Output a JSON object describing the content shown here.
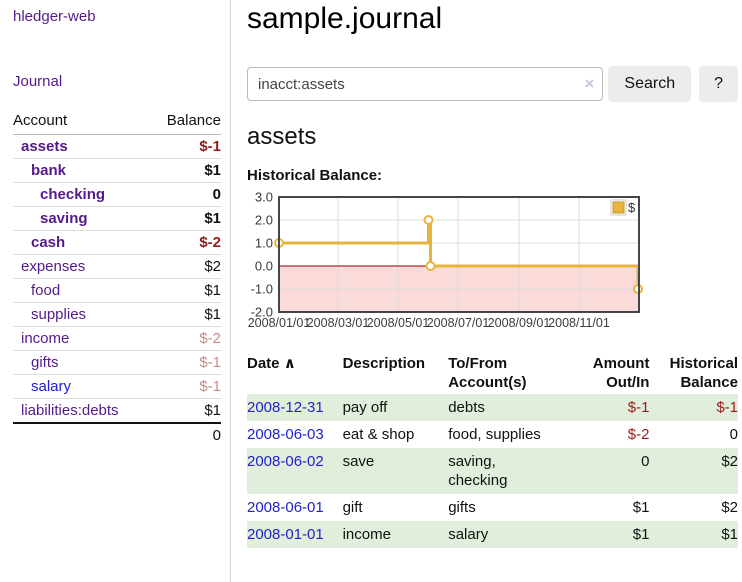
{
  "app": {
    "title": "hledger-web",
    "nav_journal": "Journal"
  },
  "sidebar": {
    "table": {
      "col_account": "Account",
      "col_balance": "Balance",
      "total": "0"
    },
    "accounts": [
      {
        "name": "assets",
        "depth": 0,
        "bold": true,
        "balance": "$-1",
        "neg": "strong"
      },
      {
        "name": "bank",
        "depth": 1,
        "bold": true,
        "balance": "$1",
        "neg": "none"
      },
      {
        "name": "checking",
        "depth": 2,
        "bold": true,
        "balance": "0",
        "neg": "none"
      },
      {
        "name": "saving",
        "depth": 2,
        "bold": true,
        "balance": "$1",
        "neg": "none"
      },
      {
        "name": "cash",
        "depth": 1,
        "bold": true,
        "balance": "$-2",
        "neg": "strong"
      },
      {
        "name": "expenses",
        "depth": 0,
        "bold": false,
        "balance": "$2",
        "neg": "none"
      },
      {
        "name": "food",
        "depth": 1,
        "bold": false,
        "balance": "$1",
        "neg": "none"
      },
      {
        "name": "supplies",
        "depth": 1,
        "bold": false,
        "balance": "$1",
        "neg": "none"
      },
      {
        "name": "income",
        "depth": 0,
        "bold": false,
        "balance": "$-2",
        "neg": "faint"
      },
      {
        "name": "gifts",
        "depth": 1,
        "bold": false,
        "balance": "$-1",
        "neg": "faint"
      },
      {
        "name": "salary",
        "depth": 1,
        "bold": false,
        "balance": "$-1",
        "neg": "faint",
        "link": "blue"
      },
      {
        "name": "liabilities:debts",
        "depth": 0,
        "bold": false,
        "balance": "$1",
        "neg": "none"
      }
    ]
  },
  "main": {
    "title": "sample.journal",
    "search": {
      "value": "inacct:assets",
      "clear_icon": "×",
      "button": "Search",
      "help_button": "?"
    },
    "account_heading": "assets",
    "chart_label": "Historical Balance:"
  },
  "chart_data": {
    "type": "line",
    "title": "Historical Balance",
    "step": true,
    "series": [
      {
        "name": "$",
        "color": "#e7b53c",
        "points": [
          [
            "2008-01-01",
            1
          ],
          [
            "2008-06-01",
            2
          ],
          [
            "2008-06-03",
            0
          ],
          [
            "2008-12-31",
            -1
          ]
        ]
      }
    ],
    "x_range": [
      "2008-01-01",
      "2009-01-01"
    ],
    "ylim": [
      -2,
      3
    ],
    "yticks": [
      "3.0",
      "2.0",
      "1.0",
      "0.0",
      "-1.0",
      "-2.0"
    ],
    "xticks": [
      "2008/01/01",
      "2008/03/01",
      "2008/05/01",
      "2008/07/01",
      "2008/09/01",
      "2008/11/01"
    ],
    "legend": {
      "label": "$",
      "position": "top-right",
      "swatch_color": "#e7b53c"
    },
    "grid": true,
    "negative_region_color": "#fbdada",
    "zero_line_color": "#8b0000",
    "border_color": "#45454d"
  },
  "register": {
    "sort_icon": "∧",
    "headers": [
      {
        "label": "Date"
      },
      {
        "label": "Description"
      },
      {
        "label": "To/From Account(s)"
      },
      {
        "label": "Amount Out/In"
      },
      {
        "label": "Historical Balance"
      }
    ],
    "rows": [
      {
        "date": "2008-12-31",
        "description": "pay off",
        "accounts": "debts",
        "amount": "$-1",
        "amount_negative": true,
        "balance": "$-1",
        "balance_negative": true
      },
      {
        "date": "2008-06-03",
        "description": "eat & shop",
        "accounts": "food, supplies",
        "amount": "$-2",
        "amount_negative": true,
        "balance": "0",
        "balance_negative": false
      },
      {
        "date": "2008-06-02",
        "description": "save",
        "accounts": "saving, checking",
        "amount": "0",
        "amount_negative": false,
        "balance": "$2",
        "balance_negative": false
      },
      {
        "date": "2008-06-01",
        "description": "gift",
        "accounts": "gifts",
        "amount": "$1",
        "amount_negative": false,
        "balance": "$2",
        "balance_negative": false
      },
      {
        "date": "2008-01-01",
        "description": "income",
        "accounts": "salary",
        "amount": "$1",
        "amount_negative": false,
        "balance": "$1",
        "balance_negative": false
      }
    ]
  }
}
